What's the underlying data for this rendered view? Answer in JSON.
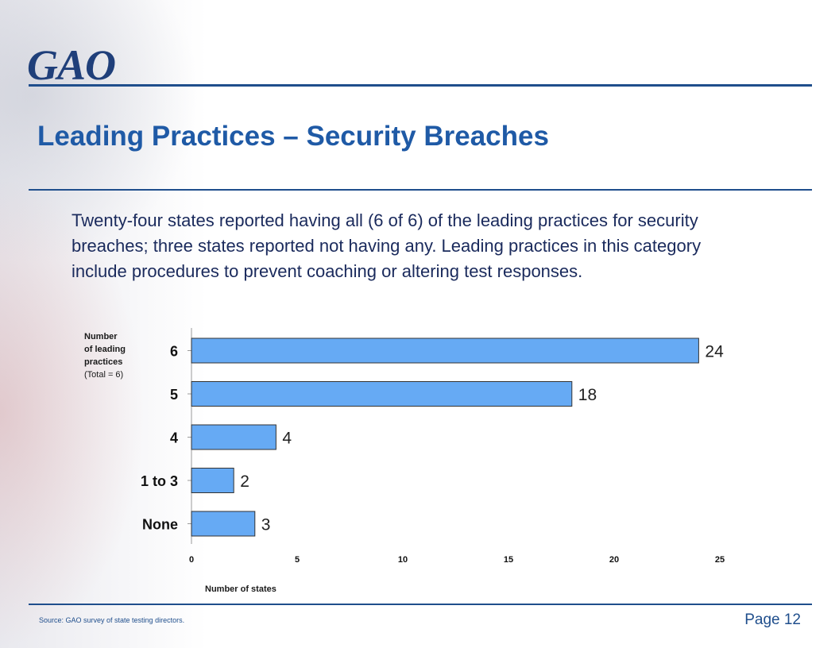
{
  "brand": {
    "logo_text": "GAO",
    "primary_color": "#1f4e8c",
    "title_color": "#1f5aa6"
  },
  "slide": {
    "title": "Leading Practices – Security Breaches",
    "intro": "Twenty-four states reported having all (6 of 6) of the leading practices for security breaches; three states reported not having any. Leading practices in this category include procedures to prevent  coaching or altering test responses.",
    "source": "Source: GAO survey of state testing directors.",
    "page_label": "Page 12"
  },
  "chart_data": {
    "type": "bar",
    "orientation": "horizontal",
    "categories": [
      "6",
      "5",
      "4",
      "1 to 3",
      "None"
    ],
    "values": [
      24,
      18,
      4,
      2,
      3
    ],
    "ylabel_lines": [
      "Number",
      "of leading",
      "practices",
      "(Total = 6)"
    ],
    "xlabel": "Number of states",
    "xlim": [
      0,
      25
    ],
    "xticks": [
      0,
      5,
      10,
      15,
      20,
      25
    ],
    "bar_color": "#66aaf4",
    "grid": false
  }
}
